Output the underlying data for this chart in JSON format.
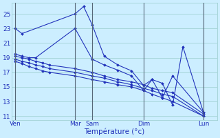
{
  "background_color": "#cceeff",
  "grid_color": "#99cccc",
  "line_color": "#2233bb",
  "xlabel": "Température (°c)",
  "ylim": [
    10.5,
    26.5
  ],
  "yticks": [
    11,
    13,
    15,
    17,
    19,
    21,
    23,
    25
  ],
  "day_labels": [
    "Ven",
    "Mar",
    "Sam",
    "Dim",
    "Lun"
  ],
  "day_x": [
    0,
    35,
    45,
    75,
    110
  ],
  "xlim": [
    -2,
    118
  ],
  "series": [
    {
      "x": [
        0,
        4,
        35,
        40,
        45,
        52,
        60,
        68,
        75,
        80,
        86,
        92,
        98,
        110
      ],
      "y": [
        23.0,
        22.3,
        25.0,
        26.0,
        23.5,
        19.2,
        18.0,
        17.2,
        15.2,
        16.0,
        15.5,
        12.5,
        20.5,
        11.5
      ]
    },
    {
      "x": [
        0,
        4,
        8,
        12,
        35,
        45,
        52,
        60,
        68,
        75,
        80,
        86,
        92,
        110
      ],
      "y": [
        19.5,
        19.2,
        19.0,
        19.0,
        23.0,
        18.8,
        18.0,
        17.3,
        16.5,
        14.5,
        16.0,
        13.5,
        16.5,
        11.5
      ]
    },
    {
      "x": [
        0,
        4,
        8,
        12,
        16,
        20,
        35,
        45,
        52,
        60,
        68,
        75,
        80,
        86,
        92,
        110
      ],
      "y": [
        19.2,
        19.0,
        18.8,
        18.5,
        18.3,
        18.0,
        17.5,
        17.0,
        16.5,
        16.0,
        15.7,
        15.3,
        14.8,
        14.5,
        14.2,
        11.3
      ]
    },
    {
      "x": [
        0,
        4,
        8,
        12,
        16,
        20,
        35,
        45,
        52,
        60,
        68,
        75,
        80,
        86,
        92,
        110
      ],
      "y": [
        18.8,
        18.5,
        18.3,
        18.0,
        17.8,
        17.5,
        17.0,
        16.5,
        16.2,
        15.7,
        15.3,
        14.8,
        14.5,
        14.0,
        13.7,
        11.0
      ]
    },
    {
      "x": [
        0,
        4,
        8,
        12,
        16,
        20,
        35,
        45,
        52,
        60,
        68,
        75,
        80,
        86,
        92,
        110
      ],
      "y": [
        18.5,
        18.2,
        17.8,
        17.5,
        17.2,
        17.0,
        16.5,
        16.0,
        15.7,
        15.3,
        15.0,
        14.5,
        14.0,
        13.5,
        13.0,
        11.0
      ]
    }
  ]
}
